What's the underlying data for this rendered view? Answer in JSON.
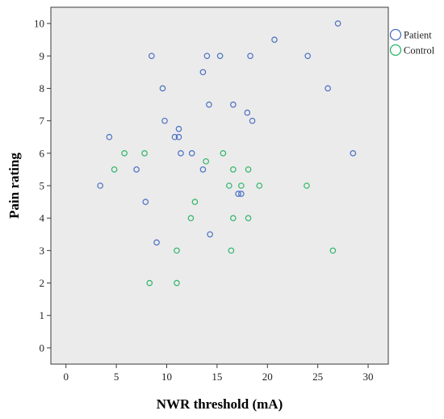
{
  "chart_data": {
    "type": "scatter",
    "title": "",
    "xlabel": "NWR threshold (mA)",
    "ylabel": "Pain rating",
    "xlim": [
      -1.5,
      32
    ],
    "ylim": [
      -0.5,
      10.5
    ],
    "xticks": [
      0,
      5,
      10,
      15,
      20,
      25,
      30
    ],
    "yticks": [
      0,
      1,
      2,
      3,
      4,
      5,
      6,
      7,
      8,
      9,
      10
    ],
    "grid": false,
    "background": "#ebebeb",
    "legend_position": "top-right",
    "series": [
      {
        "name": "Patient",
        "color": "#4a6fc4",
        "points": [
          [
            27.0,
            10
          ],
          [
            20.7,
            9.5
          ],
          [
            8.5,
            9
          ],
          [
            14.0,
            9
          ],
          [
            15.3,
            9
          ],
          [
            18.3,
            9
          ],
          [
            24.0,
            9
          ],
          [
            13.6,
            8.5
          ],
          [
            9.6,
            8
          ],
          [
            26.0,
            8
          ],
          [
            14.2,
            7.5
          ],
          [
            16.6,
            7.5
          ],
          [
            18.0,
            7.25
          ],
          [
            9.8,
            7
          ],
          [
            18.5,
            7
          ],
          [
            11.2,
            6.75
          ],
          [
            4.3,
            6.5
          ],
          [
            10.8,
            6.5
          ],
          [
            11.2,
            6.5
          ],
          [
            11.4,
            6
          ],
          [
            12.5,
            6
          ],
          [
            28.5,
            6
          ],
          [
            7.0,
            5.5
          ],
          [
            13.6,
            5.5
          ],
          [
            3.4,
            5
          ],
          [
            17.1,
            4.75
          ],
          [
            17.4,
            4.75
          ],
          [
            7.9,
            4.5
          ],
          [
            14.3,
            3.5
          ],
          [
            9.0,
            3.25
          ]
        ]
      },
      {
        "name": "Control",
        "color": "#2fb56a",
        "points": [
          [
            5.8,
            6
          ],
          [
            7.8,
            6
          ],
          [
            15.6,
            6
          ],
          [
            13.9,
            5.75
          ],
          [
            4.8,
            5.5
          ],
          [
            16.6,
            5.5
          ],
          [
            18.1,
            5.5
          ],
          [
            16.2,
            5
          ],
          [
            17.4,
            5
          ],
          [
            19.2,
            5
          ],
          [
            23.9,
            5
          ],
          [
            12.8,
            4.5
          ],
          [
            12.4,
            4
          ],
          [
            16.6,
            4
          ],
          [
            18.1,
            4
          ],
          [
            11.0,
            3
          ],
          [
            16.4,
            3
          ],
          [
            26.5,
            3
          ],
          [
            8.3,
            2
          ],
          [
            11.0,
            2
          ]
        ]
      }
    ]
  }
}
